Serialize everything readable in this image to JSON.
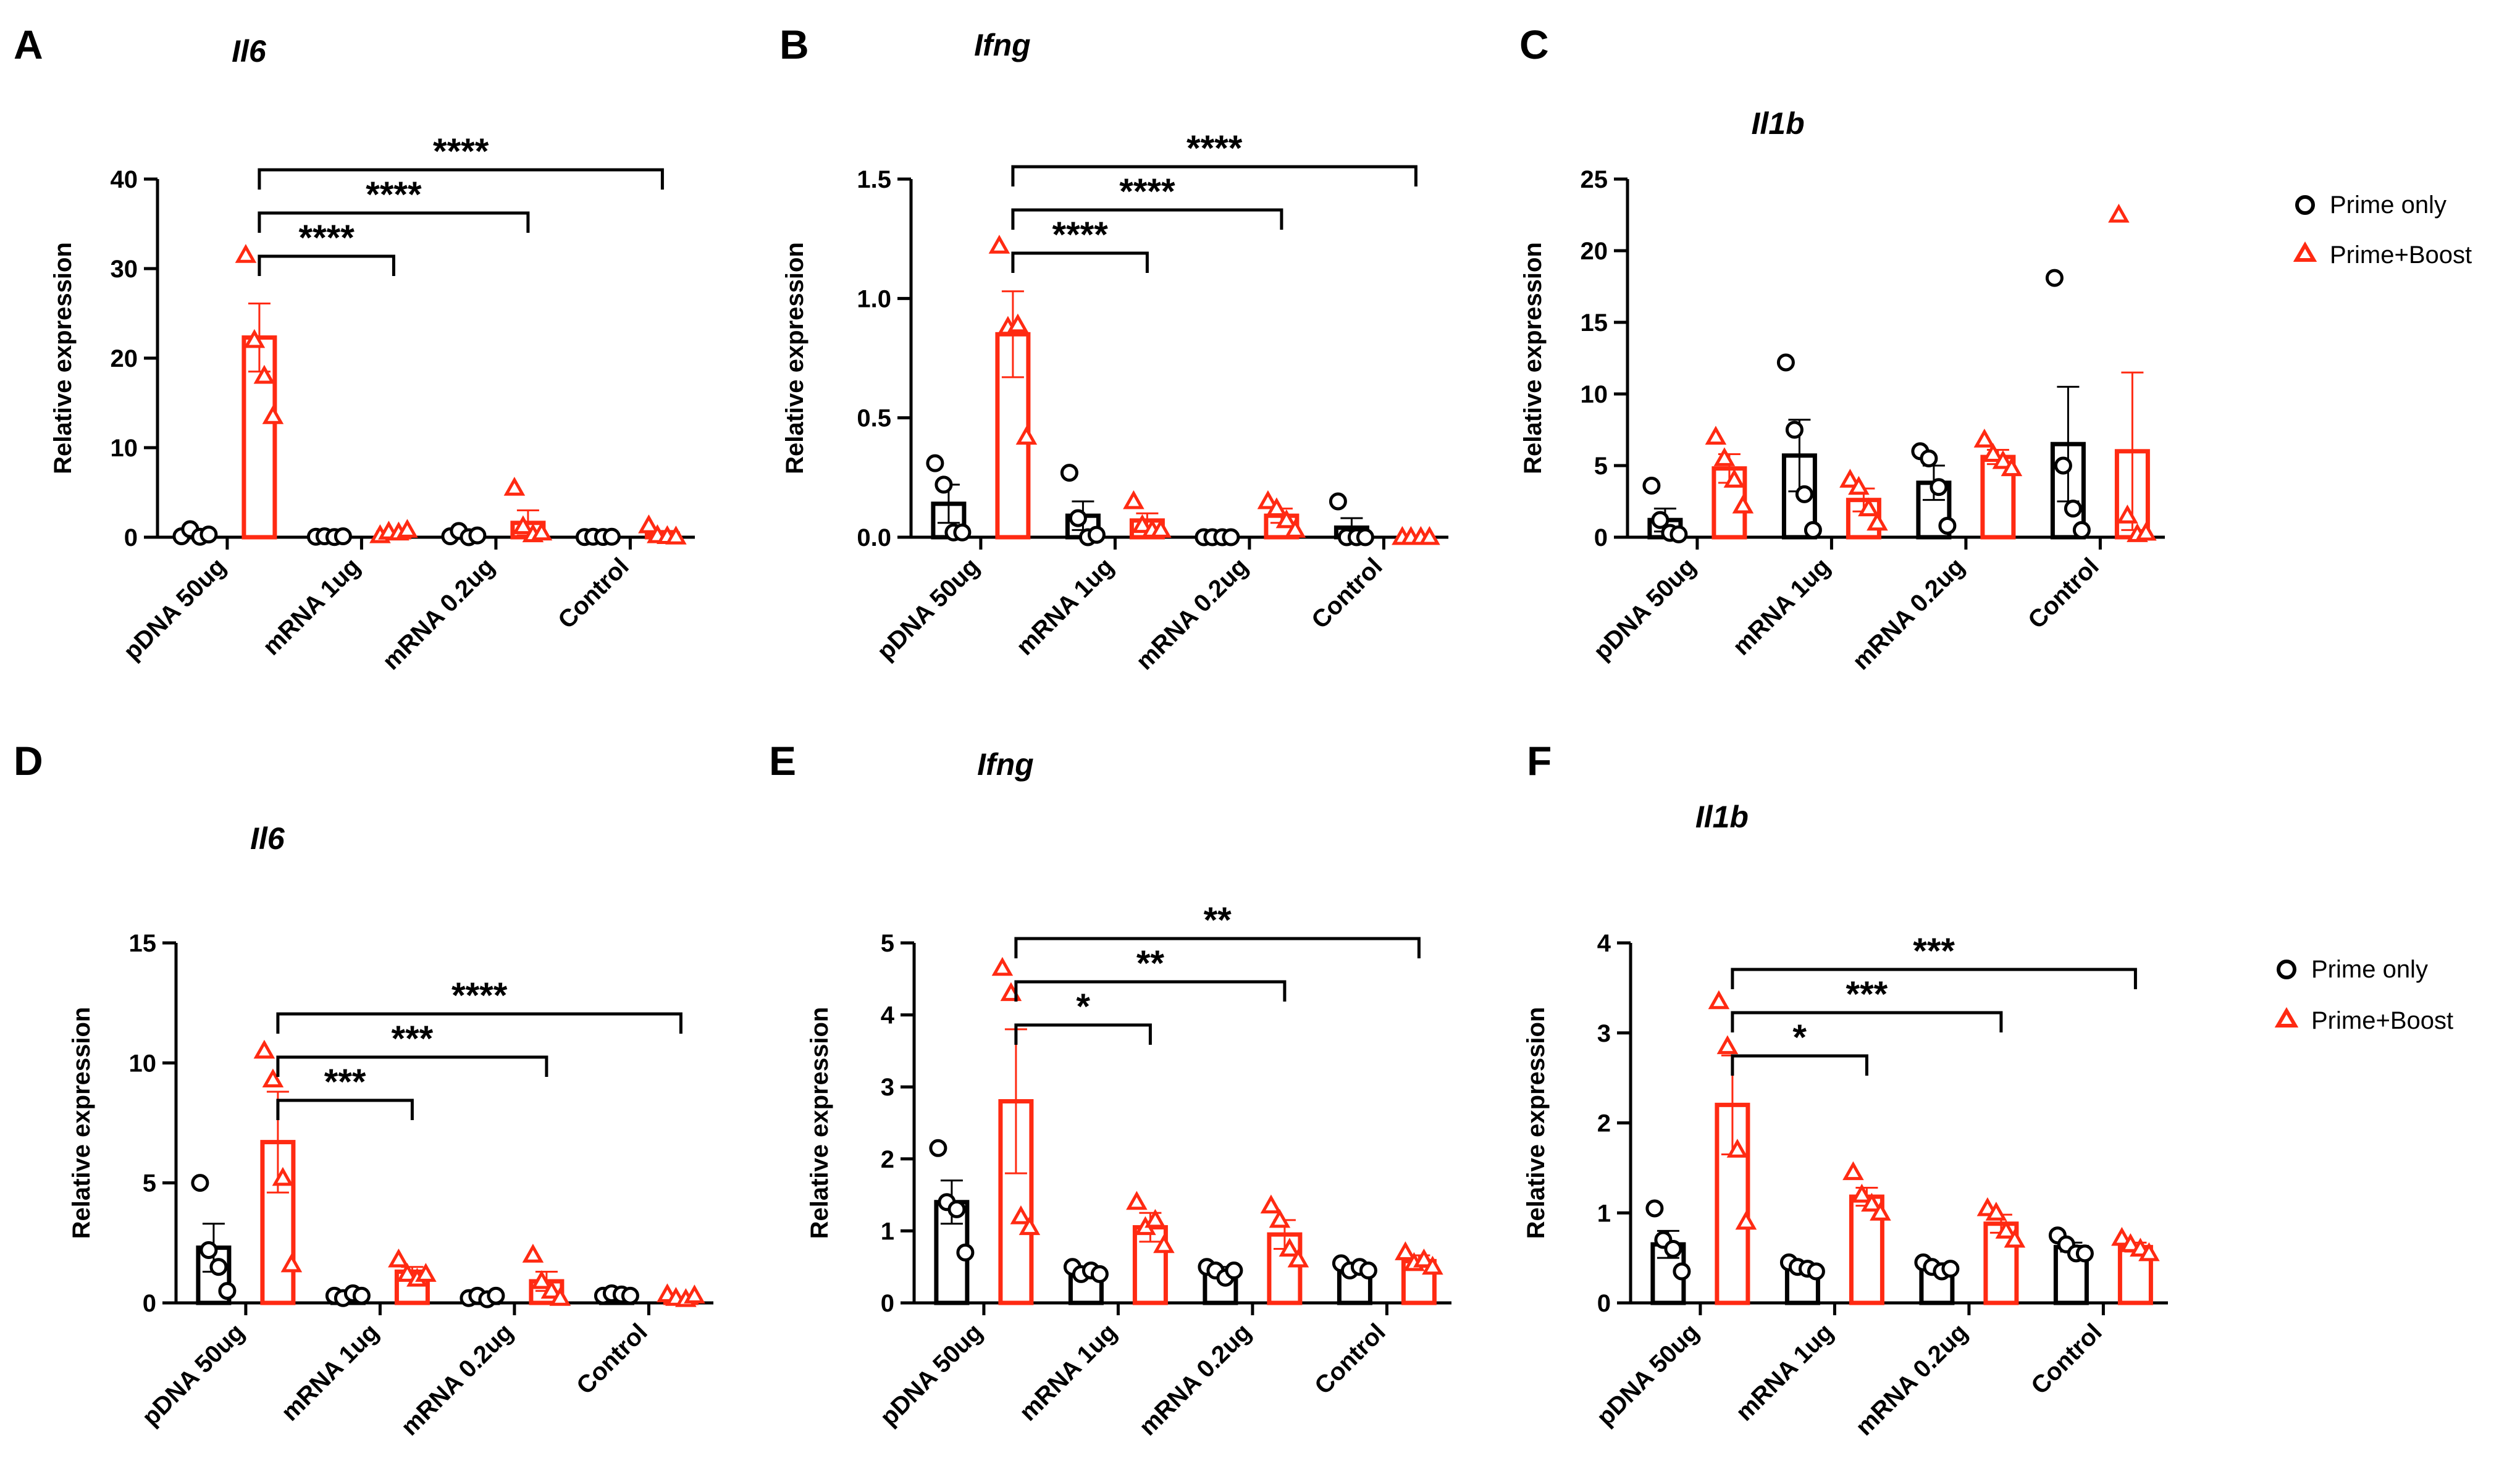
{
  "colors": {
    "prime": "#000000",
    "boost": "#ff2a12"
  },
  "legend": {
    "prime_label": "Prime only",
    "boost_label": "Prime+Boost"
  },
  "y_axis_label": "Relative expression",
  "chart_data": [
    {
      "type": "bar",
      "panel_letter": "A",
      "title": "Il6",
      "categories": [
        "pDNA 50ug",
        "mRNA 1ug",
        "mRNA 0.2ug",
        "Control"
      ],
      "ylabel": "Relative expression",
      "ylim": [
        0,
        40
      ],
      "yticks": [
        0,
        10,
        20,
        30,
        40
      ],
      "series": [
        {
          "name": "Prime only",
          "values": [
            0.2,
            0.05,
            0.2,
            0.05
          ],
          "sem": [
            0.3,
            0.05,
            0.2,
            0.02
          ],
          "points": [
            [
              0.1,
              0.9,
              0.05,
              0.3
            ],
            [
              0.05,
              0.1,
              0.02,
              0.1
            ],
            [
              0.1,
              0.7,
              0.0,
              0.2
            ],
            [
              0.02,
              0.05,
              0.03,
              0.05
            ]
          ]
        },
        {
          "name": "Prime+Boost",
          "values": [
            22.3,
            0.5,
            1.6,
            0.4
          ],
          "sem": [
            3.8,
            0.2,
            1.4,
            0.3
          ],
          "points": [
            [
              31.5,
              22,
              18,
              13.5
            ],
            [
              0.2,
              0.6,
              0.5,
              0.8
            ],
            [
              5.5,
              1.2,
              0.3,
              0.5
            ],
            [
              1.3,
              0.2,
              0.1,
              0.05
            ]
          ]
        }
      ],
      "significance": [
        {
          "from": "pDNA 50ug",
          "to": "mRNA 1ug",
          "label": "****"
        },
        {
          "from": "pDNA 50ug",
          "to": "mRNA 0.2ug",
          "label": "****"
        },
        {
          "from": "pDNA 50ug",
          "to": "Control",
          "label": "****"
        }
      ]
    },
    {
      "type": "bar",
      "panel_letter": "B",
      "title": "Ifng",
      "categories": [
        "pDNA 50ug",
        "mRNA 1ug",
        "mRNA 0.2ug",
        "Control"
      ],
      "ylabel": "Relative expression",
      "ylim": [
        0,
        1.5
      ],
      "yticks": [
        0,
        0.5,
        1.0,
        1.5
      ],
      "series": [
        {
          "name": "Prime only",
          "values": [
            0.14,
            0.09,
            0.0,
            0.04
          ],
          "sem": [
            0.08,
            0.06,
            0.005,
            0.04
          ],
          "points": [
            [
              0.31,
              0.22,
              0.02,
              0.02
            ],
            [
              0.27,
              0.08,
              0.0,
              0.01
            ],
            [
              0.0,
              0.0,
              0.0,
              0.0
            ],
            [
              0.15,
              0.0,
              0.0,
              0.0
            ]
          ]
        },
        {
          "name": "Prime+Boost",
          "values": [
            0.85,
            0.07,
            0.09,
            0.0
          ],
          "sem": [
            0.18,
            0.03,
            0.03,
            0.003
          ],
          "points": [
            [
              1.22,
              0.88,
              0.89,
              0.42
            ],
            [
              0.15,
              0.05,
              0.03,
              0.03
            ],
            [
              0.15,
              0.12,
              0.07,
              0.03
            ],
            [
              0.0,
              0.0,
              0.0,
              0.0
            ]
          ]
        }
      ],
      "significance": [
        {
          "from": "pDNA 50ug",
          "to": "mRNA 1ug",
          "label": "****"
        },
        {
          "from": "pDNA 50ug",
          "to": "mRNA 0.2ug",
          "label": "****"
        },
        {
          "from": "pDNA 50ug",
          "to": "Control",
          "label": "****"
        }
      ]
    },
    {
      "type": "bar",
      "panel_letter": "C",
      "title": "Il1b",
      "categories": [
        "pDNA 50ug",
        "mRNA 1ug",
        "mRNA 0.2ug",
        "Control"
      ],
      "ylabel": "Relative expression",
      "ylim": [
        0,
        25
      ],
      "yticks": [
        0,
        5,
        10,
        15,
        20,
        25
      ],
      "series": [
        {
          "name": "Prime only",
          "values": [
            1.2,
            5.7,
            3.8,
            6.5
          ],
          "sem": [
            0.8,
            2.5,
            1.2,
            4.0
          ],
          "points": [
            [
              3.6,
              1.2,
              0.3,
              0.2
            ],
            [
              12.2,
              7.5,
              3.0,
              0.5
            ],
            [
              6.0,
              5.5,
              3.5,
              0.8
            ],
            [
              18.1,
              5.0,
              2.0,
              0.5
            ]
          ]
        },
        {
          "name": "Prime+Boost",
          "values": [
            4.8,
            2.6,
            5.6,
            6.0
          ],
          "sem": [
            1.0,
            0.8,
            0.5,
            5.5
          ],
          "points": [
            [
              7.0,
              5.5,
              4.0,
              2.2
            ],
            [
              4.0,
              3.5,
              2.0,
              1.0
            ],
            [
              6.8,
              5.8,
              5.3,
              4.8
            ],
            [
              22.5,
              1.5,
              0.2,
              0.3
            ]
          ]
        }
      ],
      "significance": []
    },
    {
      "type": "bar",
      "panel_letter": "D",
      "title": "Il6",
      "categories": [
        "pDNA 50ug",
        "mRNA 1ug",
        "mRNA 0.2ug",
        "Control"
      ],
      "ylabel": "Relative expression",
      "ylim": [
        0,
        15
      ],
      "yticks": [
        0,
        5,
        10,
        15
      ],
      "series": [
        {
          "name": "Prime only",
          "values": [
            2.3,
            0.3,
            0.25,
            0.35
          ],
          "sem": [
            1.0,
            0.05,
            0.05,
            0.05
          ],
          "points": [
            [
              5.0,
              2.2,
              1.5,
              0.5
            ],
            [
              0.3,
              0.2,
              0.4,
              0.3
            ],
            [
              0.2,
              0.3,
              0.15,
              0.3
            ],
            [
              0.3,
              0.4,
              0.35,
              0.3
            ]
          ]
        },
        {
          "name": "Prime+Boost",
          "values": [
            6.7,
            1.3,
            0.9,
            0.2
          ],
          "sem": [
            2.1,
            0.2,
            0.4,
            0.05
          ],
          "points": [
            [
              10.5,
              9.3,
              5.2,
              1.6
            ],
            [
              1.8,
              1.2,
              1.0,
              1.2
            ],
            [
              2.0,
              0.9,
              0.5,
              0.2
            ],
            [
              0.35,
              0.2,
              0.15,
              0.3
            ]
          ]
        }
      ],
      "significance": [
        {
          "from": "pDNA 50ug",
          "to": "mRNA 1ug",
          "label": "***"
        },
        {
          "from": "pDNA 50ug",
          "to": "mRNA 0.2ug",
          "label": "***"
        },
        {
          "from": "pDNA 50ug",
          "to": "Control",
          "label": "****"
        }
      ]
    },
    {
      "type": "bar",
      "panel_letter": "E",
      "title": "Ifng",
      "categories": [
        "pDNA 50ug",
        "mRNA 1ug",
        "mRNA 0.2ug",
        "Control"
      ],
      "ylabel": "Relative expression",
      "ylim": [
        0,
        5
      ],
      "yticks": [
        0,
        1,
        2,
        3,
        4,
        5
      ],
      "series": [
        {
          "name": "Prime only",
          "values": [
            1.4,
            0.45,
            0.45,
            0.5
          ],
          "sem": [
            0.3,
            0.05,
            0.05,
            0.05
          ],
          "points": [
            [
              2.15,
              1.4,
              1.3,
              0.7
            ],
            [
              0.5,
              0.4,
              0.45,
              0.4
            ],
            [
              0.5,
              0.45,
              0.35,
              0.45
            ],
            [
              0.55,
              0.45,
              0.5,
              0.45
            ]
          ]
        },
        {
          "name": "Prime+Boost",
          "values": [
            2.8,
            1.05,
            0.95,
            0.58
          ],
          "sem": [
            1.0,
            0.2,
            0.2,
            0.08
          ],
          "points": [
            [
              4.65,
              4.3,
              1.2,
              1.05
            ],
            [
              1.4,
              1.05,
              1.15,
              0.8
            ],
            [
              1.35,
              1.15,
              0.75,
              0.6
            ],
            [
              0.7,
              0.55,
              0.6,
              0.5
            ]
          ]
        }
      ],
      "significance": [
        {
          "from": "pDNA 50ug",
          "to": "mRNA 1ug",
          "label": "*"
        },
        {
          "from": "pDNA 50ug",
          "to": "mRNA 0.2ug",
          "label": "**"
        },
        {
          "from": "pDNA 50ug",
          "to": "Control",
          "label": "**"
        }
      ]
    },
    {
      "type": "bar",
      "panel_letter": "F",
      "title": "Il1b",
      "categories": [
        "pDNA 50ug",
        "mRNA 1ug",
        "mRNA 0.2ug",
        "Control"
      ],
      "ylabel": "Relative expression",
      "ylim": [
        0,
        4
      ],
      "yticks": [
        0,
        1,
        2,
        3,
        4
      ],
      "series": [
        {
          "name": "Prime only",
          "values": [
            0.65,
            0.4,
            0.4,
            0.62
          ],
          "sem": [
            0.15,
            0.04,
            0.04,
            0.05
          ],
          "points": [
            [
              1.05,
              0.7,
              0.6,
              0.35
            ],
            [
              0.45,
              0.4,
              0.38,
              0.35
            ],
            [
              0.45,
              0.4,
              0.35,
              0.38
            ],
            [
              0.75,
              0.65,
              0.55,
              0.55
            ]
          ]
        },
        {
          "name": "Prime+Boost",
          "values": [
            2.2,
            1.18,
            0.88,
            0.62
          ],
          "sem": [
            0.55,
            0.1,
            0.1,
            0.05
          ],
          "points": [
            [
              3.35,
              2.85,
              1.7,
              0.9
            ],
            [
              1.45,
              1.2,
              1.1,
              1.0
            ],
            [
              1.05,
              1.0,
              0.8,
              0.7
            ],
            [
              0.72,
              0.65,
              0.6,
              0.55
            ]
          ]
        }
      ],
      "significance": [
        {
          "from": "pDNA 50ug",
          "to": "mRNA 1ug",
          "label": "*"
        },
        {
          "from": "pDNA 50ug",
          "to": "mRNA 0.2ug",
          "label": "***"
        },
        {
          "from": "pDNA 50ug",
          "to": "Control",
          "label": "***"
        }
      ]
    }
  ]
}
